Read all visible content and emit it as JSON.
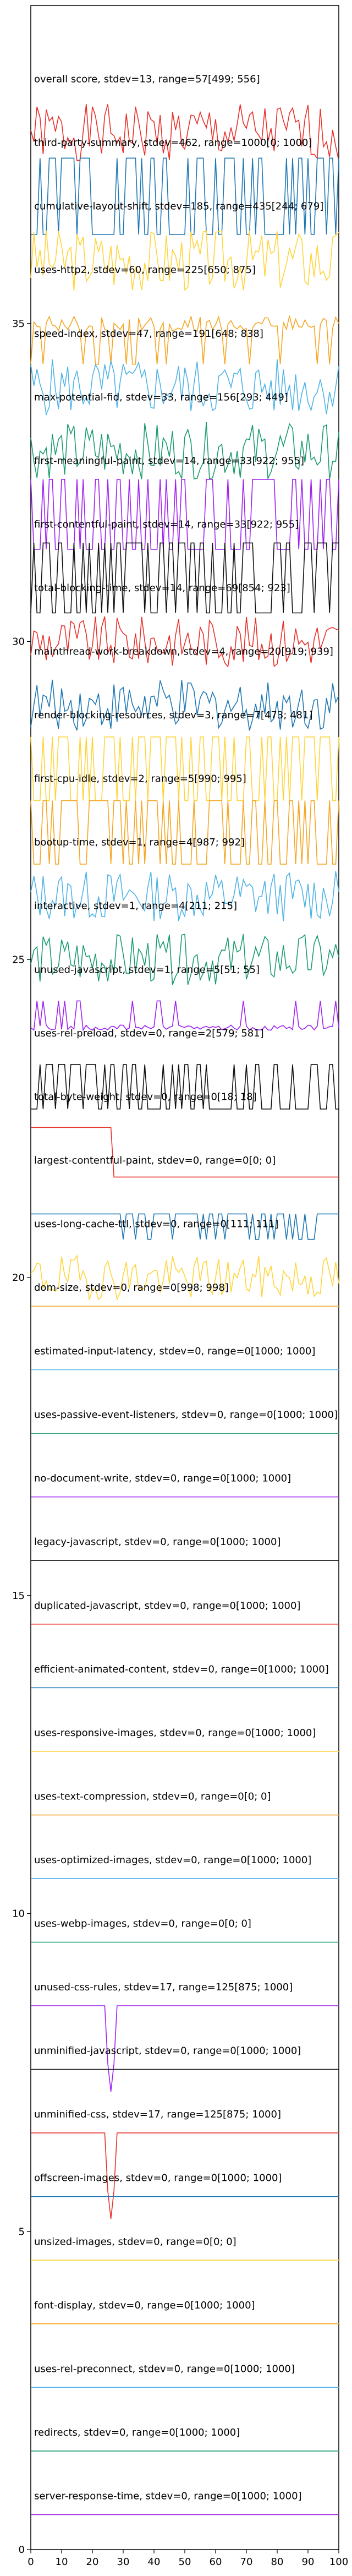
{
  "chart_data": {
    "type": "line",
    "title": "",
    "xlabel": "",
    "ylabel": "",
    "xlim": [
      0,
      100
    ],
    "ylim": [
      0,
      40
    ],
    "x_ticks": [
      0,
      10,
      20,
      30,
      40,
      50,
      60,
      70,
      80,
      90,
      100
    ],
    "y_ticks": [
      0,
      5,
      10,
      15,
      20,
      25,
      30,
      35
    ],
    "grid": false,
    "legend": "none",
    "series": [
      {
        "label": "overall score, stdev=13, range=57[499; 556]",
        "color": "#e8302a",
        "kind": "noise",
        "amp": 0.45,
        "seed": 1
      },
      {
        "label": "third-party-summary, stdev=462, range=1000[0; 1000]",
        "color": "#1f77b4",
        "kind": "square",
        "amp": 0.6,
        "seed": 2
      },
      {
        "label": "cumulative-layout-shift, stdev=185, range=435[244; 679]",
        "color": "#ffd43b",
        "kind": "noise",
        "amp": 0.5,
        "seed": 3
      },
      {
        "label": "uses-http2, stdev=60, range=225[650; 875]",
        "color": "#f5a623",
        "kind": "dips",
        "amp": 0.4,
        "seed": 4
      },
      {
        "label": "speed-index, stdev=47, range=191[648; 838]",
        "color": "#4fb3e6",
        "kind": "noise",
        "amp": 0.45,
        "seed": 5
      },
      {
        "label": "max-potential-fid, stdev=33, range=156[293; 449]",
        "color": "#1a9c6c",
        "kind": "noise",
        "amp": 0.45,
        "seed": 6
      },
      {
        "label": "first-meaningful-paint, stdev=14, range=33[922; 955]",
        "color": "#a020f0",
        "kind": "square",
        "amp": 0.55,
        "seed": 7
      },
      {
        "label": "first-contentful-paint, stdev=14, range=33[922; 955]",
        "color": "#111111",
        "kind": "square",
        "amp": 0.55,
        "seed": 8
      },
      {
        "label": "total-blocking-time, stdev=14, range=69[854; 923]",
        "color": "#e8302a",
        "kind": "noise",
        "amp": 0.4,
        "seed": 9
      },
      {
        "label": "mainthread-work-breakdown, stdev=4, range=20[919; 939]",
        "color": "#1f77b4",
        "kind": "noise",
        "amp": 0.4,
        "seed": 10
      },
      {
        "label": "render-blocking-resources, stdev=3, range=7[473; 481]",
        "color": "#ffd43b",
        "kind": "square",
        "amp": 0.5,
        "seed": 11
      },
      {
        "label": "first-cpu-idle, stdev=2, range=5[990; 995]",
        "color": "#f5a623",
        "kind": "square",
        "amp": 0.5,
        "seed": 12
      },
      {
        "label": "bootup-time, stdev=1, range=4[987; 992]",
        "color": "#4fb3e6",
        "kind": "noise",
        "amp": 0.4,
        "seed": 13
      },
      {
        "label": "interactive, stdev=1, range=4[211; 215]",
        "color": "#1a9c6c",
        "kind": "noise",
        "amp": 0.4,
        "seed": 14
      },
      {
        "label": "unused-javascript, stdev=1, range=5[51; 55]",
        "color": "#a020f0",
        "kind": "spikes",
        "amp": 0.35,
        "seed": 15
      },
      {
        "label": "uses-rel-preload, stdev=0, range=2[579; 581]",
        "color": "#111111",
        "kind": "square",
        "amp": 0.35,
        "seed": 16
      },
      {
        "label": "total-byte-weight, stdev=0, range=0[18; 18]",
        "color": "#e8302a",
        "kind": "step",
        "amp": 0.6,
        "step_at": 27,
        "seed": 17
      },
      {
        "label": "largest-contentful-paint, stdev=0, range=0[0; 0]",
        "color": "#1f77b4",
        "kind": "lowjumps",
        "amp": 0.4,
        "seed": 18
      },
      {
        "label": "uses-long-cache-ttl, stdev=0, range=0[111; 111]",
        "color": "#ffd43b",
        "kind": "noise",
        "amp": 0.35,
        "seed": 19
      },
      {
        "label": "dom-size, stdev=0, range=0[998; 998]",
        "color": "#f5a623",
        "kind": "flat",
        "amp": 0,
        "seed": 20
      },
      {
        "label": "estimated-input-latency, stdev=0, range=0[1000; 1000]",
        "color": "#4fb3e6",
        "kind": "flat",
        "amp": 0,
        "seed": 21
      },
      {
        "label": "uses-passive-event-listeners, stdev=0, range=0[1000; 1000]",
        "color": "#1a9c6c",
        "kind": "flat",
        "amp": 0,
        "seed": 22
      },
      {
        "label": "no-document-write, stdev=0, range=0[1000; 1000]",
        "color": "#a020f0",
        "kind": "flat",
        "amp": 0,
        "seed": 23
      },
      {
        "label": "legacy-javascript, stdev=0, range=0[1000; 1000]",
        "color": "#111111",
        "kind": "flat",
        "amp": 0,
        "seed": 24
      },
      {
        "label": "duplicated-javascript, stdev=0, range=0[1000; 1000]",
        "color": "#e8302a",
        "kind": "flat",
        "amp": 0,
        "seed": 25
      },
      {
        "label": "efficient-animated-content, stdev=0, range=0[1000; 1000]",
        "color": "#1f77b4",
        "kind": "flat",
        "amp": 0,
        "seed": 26
      },
      {
        "label": "uses-responsive-images, stdev=0, range=0[1000; 1000]",
        "color": "#ffd43b",
        "kind": "flat",
        "amp": 0,
        "seed": 27
      },
      {
        "label": "uses-text-compression, stdev=0, range=0[0; 0]",
        "color": "#f5a623",
        "kind": "flat",
        "amp": 0,
        "seed": 28
      },
      {
        "label": "uses-optimized-images, stdev=0, range=0[1000; 1000]",
        "color": "#4fb3e6",
        "kind": "flat",
        "amp": 0,
        "seed": 29
      },
      {
        "label": "uses-webp-images, stdev=0, range=0[0; 0]",
        "color": "#1a9c6c",
        "kind": "flat",
        "amp": 0,
        "seed": 30
      },
      {
        "label": "unused-css-rules, stdev=17, range=125[875; 1000]",
        "color": "#a020f0",
        "kind": "dip",
        "amp": 0.8,
        "dip_at": 26,
        "seed": 31
      },
      {
        "label": "unminified-javascript, stdev=0, range=0[1000; 1000]",
        "color": "#111111",
        "kind": "flat",
        "amp": 0,
        "seed": 32
      },
      {
        "label": "unminified-css, stdev=17, range=125[875; 1000]",
        "color": "#e8302a",
        "kind": "dip",
        "amp": 0.8,
        "dip_at": 26,
        "seed": 33
      },
      {
        "label": "offscreen-images, stdev=0, range=0[1000; 1000]",
        "color": "#1f77b4",
        "kind": "flat",
        "amp": 0,
        "seed": 34
      },
      {
        "label": "unsized-images, stdev=0, range=0[0; 0]",
        "color": "#ffd43b",
        "kind": "flat",
        "amp": 0,
        "seed": 35
      },
      {
        "label": "font-display, stdev=0, range=0[1000; 1000]",
        "color": "#f5a623",
        "kind": "flat",
        "amp": 0,
        "seed": 36
      },
      {
        "label": "uses-rel-preconnect, stdev=0, range=0[1000; 1000]",
        "color": "#4fb3e6",
        "kind": "flat",
        "amp": 0,
        "seed": 37
      },
      {
        "label": "redirects, stdev=0, range=0[1000; 1000]",
        "color": "#1a9c6c",
        "kind": "flat",
        "amp": 0,
        "seed": 38
      },
      {
        "label": "server-response-time, stdev=0, range=0[1000; 1000]",
        "color": "#a020f0",
        "kind": "flat",
        "amp": 0,
        "seed": 39
      }
    ]
  }
}
